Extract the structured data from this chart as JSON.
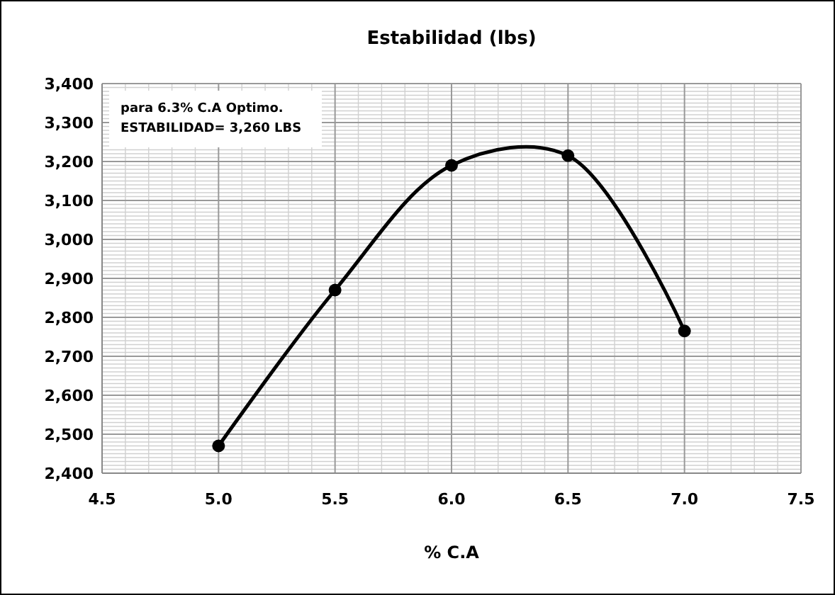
{
  "chart_data": {
    "type": "line",
    "title": "Estabilidad (lbs)",
    "xlabel": "% C.A",
    "x": [
      5.0,
      5.5,
      6.0,
      6.5,
      7.0
    ],
    "series": [
      {
        "color": "#000000",
        "values": [
          2470,
          2870,
          3190,
          3215,
          2765
        ]
      }
    ],
    "xlim": [
      4.5,
      7.5
    ],
    "xticks": [
      {
        "value": 4.5,
        "label": "4.5"
      },
      {
        "value": 5,
        "label": "5.0"
      },
      {
        "value": 5.5,
        "label": "5.5"
      },
      {
        "value": 6,
        "label": "6.0"
      },
      {
        "value": 6.5,
        "label": "6.5"
      },
      {
        "value": 7,
        "label": "7.0"
      },
      {
        "value": 7.5,
        "label": "7.5"
      }
    ],
    "ylim": [
      2400,
      3400
    ],
    "yticks": [
      {
        "value": 2400,
        "label": "2,400"
      },
      {
        "value": 2500,
        "label": "2,500"
      },
      {
        "value": 2600,
        "label": "2,600"
      },
      {
        "value": 2700,
        "label": "2,700"
      },
      {
        "value": 2800,
        "label": "2,800"
      },
      {
        "value": 2900,
        "label": "2,900"
      },
      {
        "value": 3000,
        "label": "3,000"
      },
      {
        "value": 3100,
        "label": "3,100"
      },
      {
        "value": 3200,
        "label": "3,200"
      },
      {
        "value": 3300,
        "label": "3,300"
      },
      {
        "value": 3400,
        "label": "3,400"
      }
    ],
    "grid": true,
    "marker": "circle",
    "line_style": "solid",
    "annotations": [
      "para 6.3% C.A Optimo.",
      "ESTABILIDAD=  3,260 LBS"
    ]
  }
}
